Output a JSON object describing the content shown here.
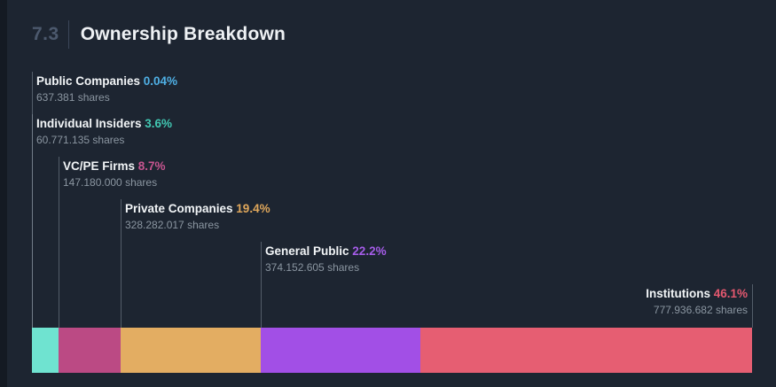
{
  "header": {
    "section_number": "7.3",
    "title": "Ownership Breakdown"
  },
  "colors": {
    "background": "#1d2531",
    "left_edge_strip": "#141a23",
    "section_number_text": "#4c596d",
    "header_divider": "#3b4759",
    "title_text": "#eef1f4",
    "label_name_text": "#f2f5f7",
    "shares_text": "#8b96a1",
    "leader_line": "rgba(150,162,175,0.45)"
  },
  "chart_data": {
    "type": "bar",
    "subtype": "stacked-horizontal-single-bar",
    "title": "Ownership Breakdown",
    "legend_position": "labels-above-segments",
    "grid": false,
    "total_pct": 100,
    "series": [
      {
        "name": "Public Companies",
        "pct": 0.04,
        "pct_label": "0.04%",
        "shares_label": "637.381 shares",
        "bar_color": "#4fb1e8",
        "pct_color": "#4fb0e5",
        "align": "left"
      },
      {
        "name": "Individual Insiders",
        "pct": 3.6,
        "pct_label": "3.6%",
        "shares_label": "60.771.135 shares",
        "bar_color": "#6fe3d0",
        "pct_color": "#42c8b3",
        "align": "left"
      },
      {
        "name": "VC/PE Firms",
        "pct": 8.7,
        "pct_label": "8.7%",
        "shares_label": "147.180.000 shares",
        "bar_color": "#bb4a84",
        "pct_color": "#c75590",
        "align": "left"
      },
      {
        "name": "Private Companies",
        "pct": 19.4,
        "pct_label": "19.4%",
        "shares_label": "328.282.017 shares",
        "bar_color": "#e3ad62",
        "pct_color": "#dfa75b",
        "align": "left"
      },
      {
        "name": "General Public",
        "pct": 22.2,
        "pct_label": "22.2%",
        "shares_label": "374.152.605 shares",
        "bar_color": "#a24fe6",
        "pct_color": "#a55ce8",
        "align": "left"
      },
      {
        "name": "Institutions",
        "pct": 46.1,
        "pct_label": "46.1%",
        "shares_label": "777.936.682 shares",
        "bar_color": "#e65e72",
        "pct_color": "#e4586f",
        "align": "right"
      }
    ]
  }
}
